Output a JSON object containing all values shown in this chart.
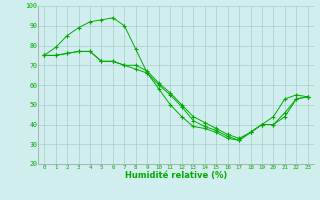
{
  "xlabel": "Humidité relative (%)",
  "xlim": [
    -0.5,
    23.5
  ],
  "ylim": [
    20,
    100
  ],
  "xticks": [
    0,
    1,
    2,
    3,
    4,
    5,
    6,
    7,
    8,
    9,
    10,
    11,
    12,
    13,
    14,
    15,
    16,
    17,
    18,
    19,
    20,
    21,
    22,
    23
  ],
  "yticks": [
    20,
    30,
    40,
    50,
    60,
    70,
    80,
    90,
    100
  ],
  "bg_color": "#d1eeee",
  "grid_color": "#aacccc",
  "line_color": "#00aa00",
  "line1_y": [
    75,
    79,
    85,
    89,
    92,
    93,
    94,
    90,
    78,
    66,
    58,
    50,
    44,
    39,
    38,
    36,
    33,
    32,
    36,
    40,
    44,
    53,
    55,
    54
  ],
  "line2_y": [
    75,
    75,
    76,
    77,
    77,
    72,
    72,
    70,
    70,
    67,
    61,
    56,
    50,
    44,
    41,
    38,
    35,
    33,
    36,
    40,
    40,
    46,
    53,
    54
  ],
  "line3_y": [
    75,
    75,
    76,
    77,
    77,
    72,
    72,
    70,
    68,
    66,
    60,
    55,
    49,
    42,
    39,
    37,
    34,
    32,
    36,
    40,
    40,
    44,
    53,
    54
  ]
}
